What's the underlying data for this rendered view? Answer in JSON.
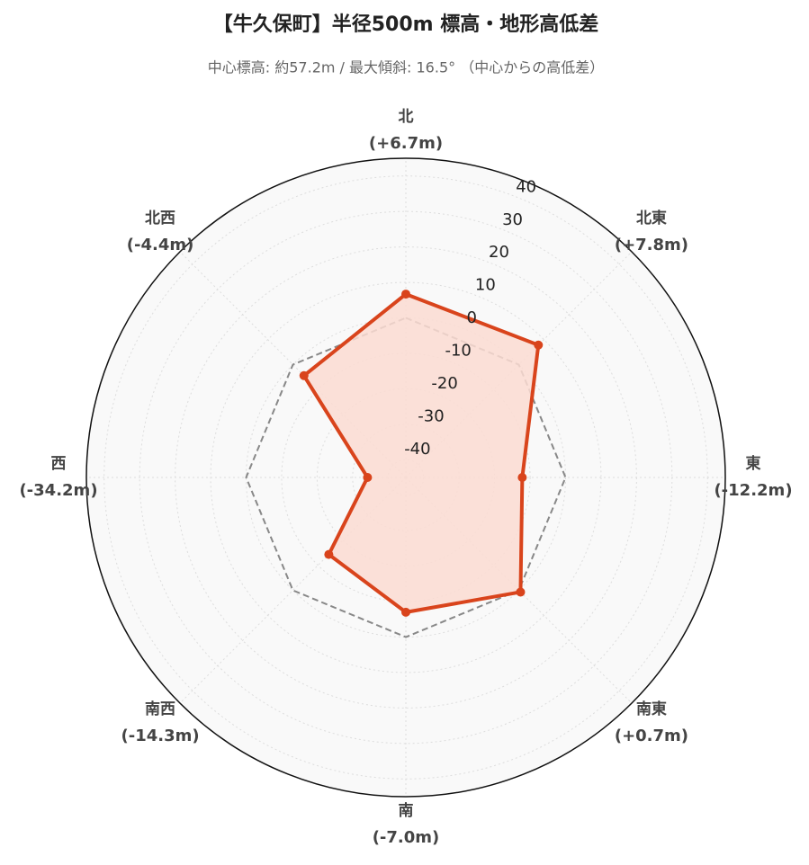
{
  "chart_data": {
    "type": "radar",
    "title": "【牛久保町】半径500m 標高・地形高低差",
    "subtitle": "中心標高: 約57.2m / 最大傾斜: 16.5° （中心からの高低差）",
    "categories": [
      "北",
      "北東",
      "東",
      "南東",
      "南",
      "南西",
      "西",
      "北西"
    ],
    "values": [
      6.7,
      7.8,
      -12.2,
      0.7,
      -7.0,
      -14.3,
      -34.2,
      -4.4
    ],
    "value_labels": [
      "(+6.7m)",
      "(+7.8m)",
      "(-12.2m)",
      "(+0.7m)",
      "(-7.0m)",
      "(-14.3m)",
      "(-34.2m)",
      "(-4.4m)"
    ],
    "color": "#d9441c",
    "fill_color": "#fcdcd2",
    "ylim": [
      -45,
      45
    ],
    "yticks": [
      -40,
      -30,
      -20,
      -10,
      0,
      10,
      20,
      30,
      40
    ],
    "grid": true,
    "reference_line": {
      "value": 0,
      "color": "#888888",
      "style": "dashed"
    }
  }
}
